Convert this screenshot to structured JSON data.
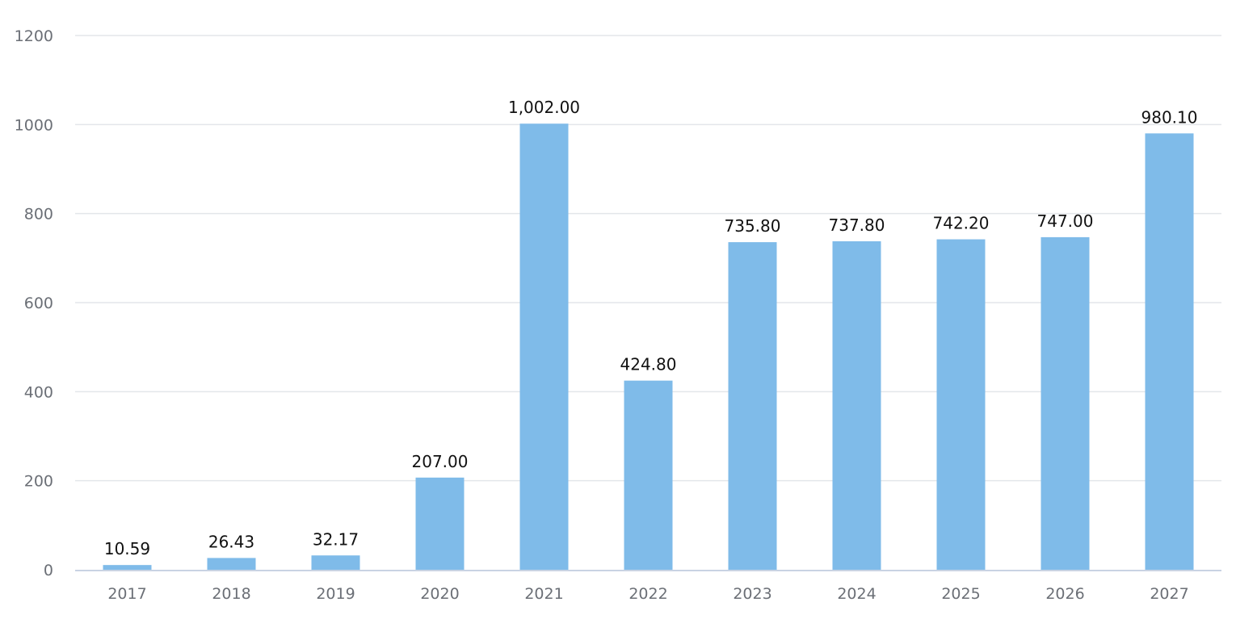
{
  "chart_data": {
    "type": "bar",
    "title": "",
    "xlabel": "",
    "ylabel": "",
    "categories": [
      "2017",
      "2018",
      "2019",
      "2020",
      "2021",
      "2022",
      "2023",
      "2024",
      "2025",
      "2026",
      "2027"
    ],
    "values": [
      10.59,
      26.43,
      32.17,
      207.0,
      1002.0,
      424.8,
      735.8,
      737.8,
      742.2,
      747.0,
      980.1
    ],
    "data_labels": [
      "10.59",
      "26.43",
      "32.17",
      "207.00",
      "1,002.00",
      "424.80",
      "735.80",
      "737.80",
      "742.20",
      "747.00",
      "980.10"
    ],
    "y_ticks": [
      "0",
      "200",
      "400",
      "600",
      "800",
      "1000",
      "1200"
    ],
    "ylim": [
      0,
      1200
    ],
    "grid": true,
    "legend": "none",
    "bar_color": "#7fbbe9"
  }
}
